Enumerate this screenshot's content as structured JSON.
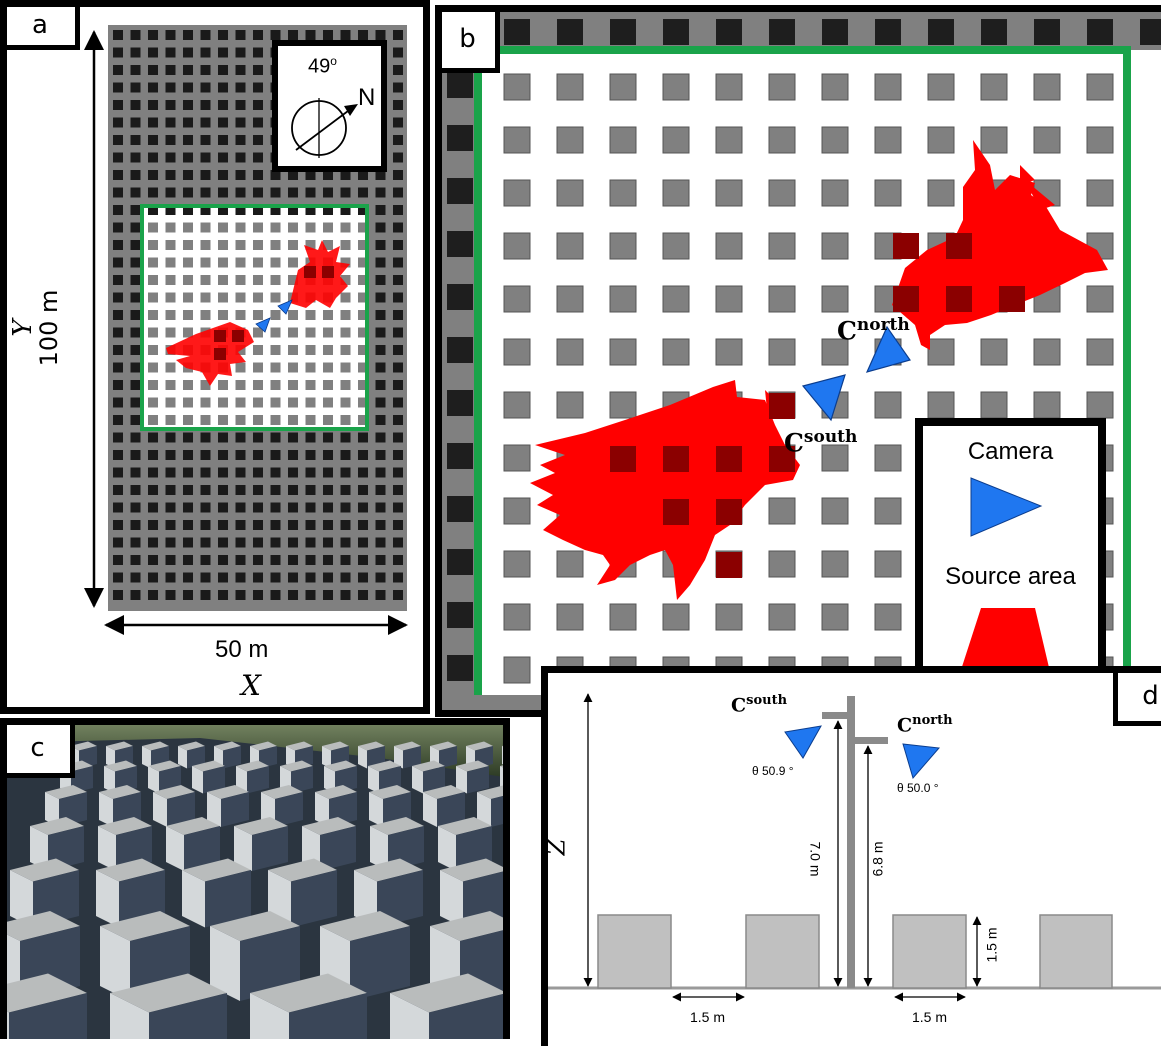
{
  "panel_labels": {
    "a": "a",
    "b": "b",
    "c": "c",
    "d": "d"
  },
  "panel_a": {
    "compass_angle": "49",
    "compass_degree_mark": "o",
    "compass_north": "N",
    "x_length": "50 m",
    "x_axis": "X",
    "y_length": "100 m",
    "y_axis": "Y",
    "grid": {
      "cols": 17,
      "rows": 33
    }
  },
  "panel_b": {
    "camera_north_base": "C",
    "camera_north_sup": "north",
    "camera_south_base": "C",
    "camera_south_sup": "south",
    "legend": {
      "camera": "Camera",
      "source_area": "Source area"
    },
    "grid": {
      "cols": 12,
      "rows": 12
    }
  },
  "panel_d": {
    "camera_south_base": "C",
    "camera_south_sup": "south",
    "camera_north_base": "C",
    "camera_north_sup": "north",
    "angle_south": "θ 50.9 °",
    "angle_north": "θ 50.0 °",
    "height_south": "7.0 m",
    "height_north": "6.8 m",
    "block_height": "1.5 m",
    "spacing_left": "1.5 m",
    "spacing_right": "1.5 m",
    "z_axis": "Z"
  },
  "colors": {
    "grass_green": "#1aa34a",
    "camera_blue": "#1f77f0",
    "source_red": "#ff0000",
    "block_gray": "#808080",
    "dark_block": "#1e1e1e",
    "ground_gray": "#9a9a9a"
  }
}
